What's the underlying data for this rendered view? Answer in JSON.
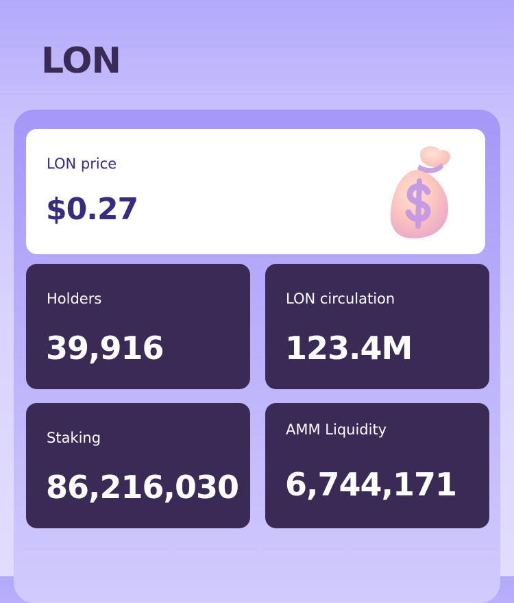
{
  "header": {
    "title": "LON"
  },
  "price_card": {
    "label": "LON price",
    "value": "$0.27",
    "icon": "money-bag-icon"
  },
  "stats": [
    {
      "label": "Holders",
      "value": "39,916"
    },
    {
      "label": "LON circulation",
      "value": "123.4M"
    },
    {
      "label": "Staking",
      "value": "86,216,030"
    },
    {
      "label": "AMM Liquidity",
      "value": "6,744,171"
    }
  ],
  "colors": {
    "title": "#3a2a56",
    "accent": "#3b2a82",
    "card_dark": "#3a2a56",
    "card_light": "#ffffff",
    "panel": "#a497f8"
  }
}
